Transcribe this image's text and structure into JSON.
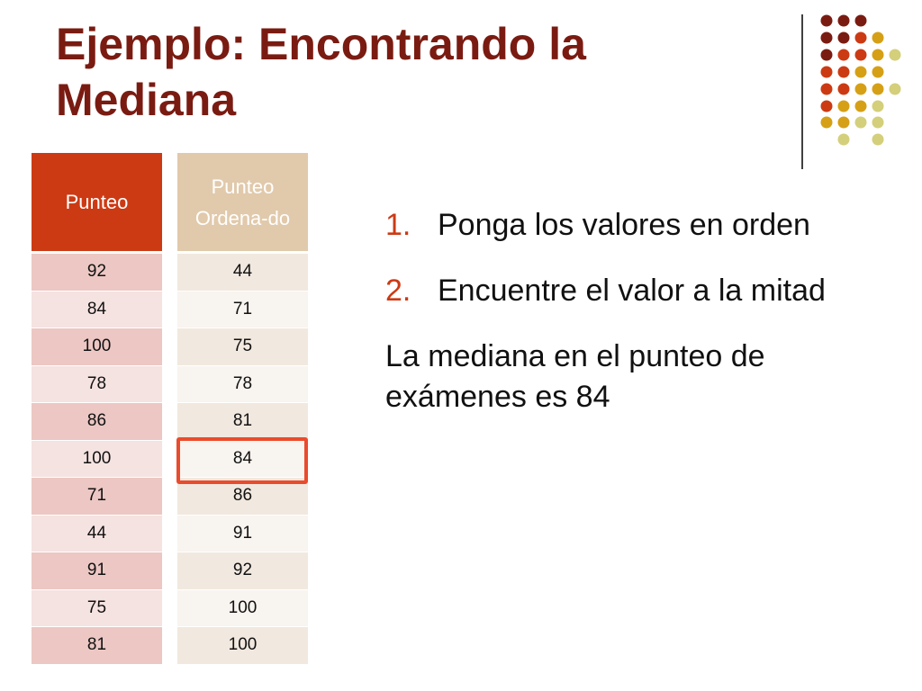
{
  "slide": {
    "title": "Ejemplo: Encontrando la Mediana",
    "colors": {
      "title": "#7a1b12",
      "table1_header": "#cc3a14",
      "table2_header": "#e1c9ab",
      "highlight": "#ea4b2c",
      "list_number": "#cc3a14"
    }
  },
  "table_original": {
    "header": "Punteo",
    "values": [
      "92",
      "84",
      "100",
      "78",
      "86",
      "100",
      "71",
      "44",
      "91",
      "75",
      "81"
    ]
  },
  "table_sorted": {
    "header": "Punteo Ordena-do",
    "values": [
      "44",
      "71",
      "75",
      "78",
      "81",
      "84",
      "86",
      "91",
      "92",
      "100",
      "100"
    ],
    "highlighted_value": "84"
  },
  "steps": [
    {
      "number": "1.",
      "text": "Ponga los valores en orden"
    },
    {
      "number": "2.",
      "text": "Encuentre el valor a la mitad"
    }
  ],
  "conclusion": "La mediana en el punteo de exámenes es 84"
}
